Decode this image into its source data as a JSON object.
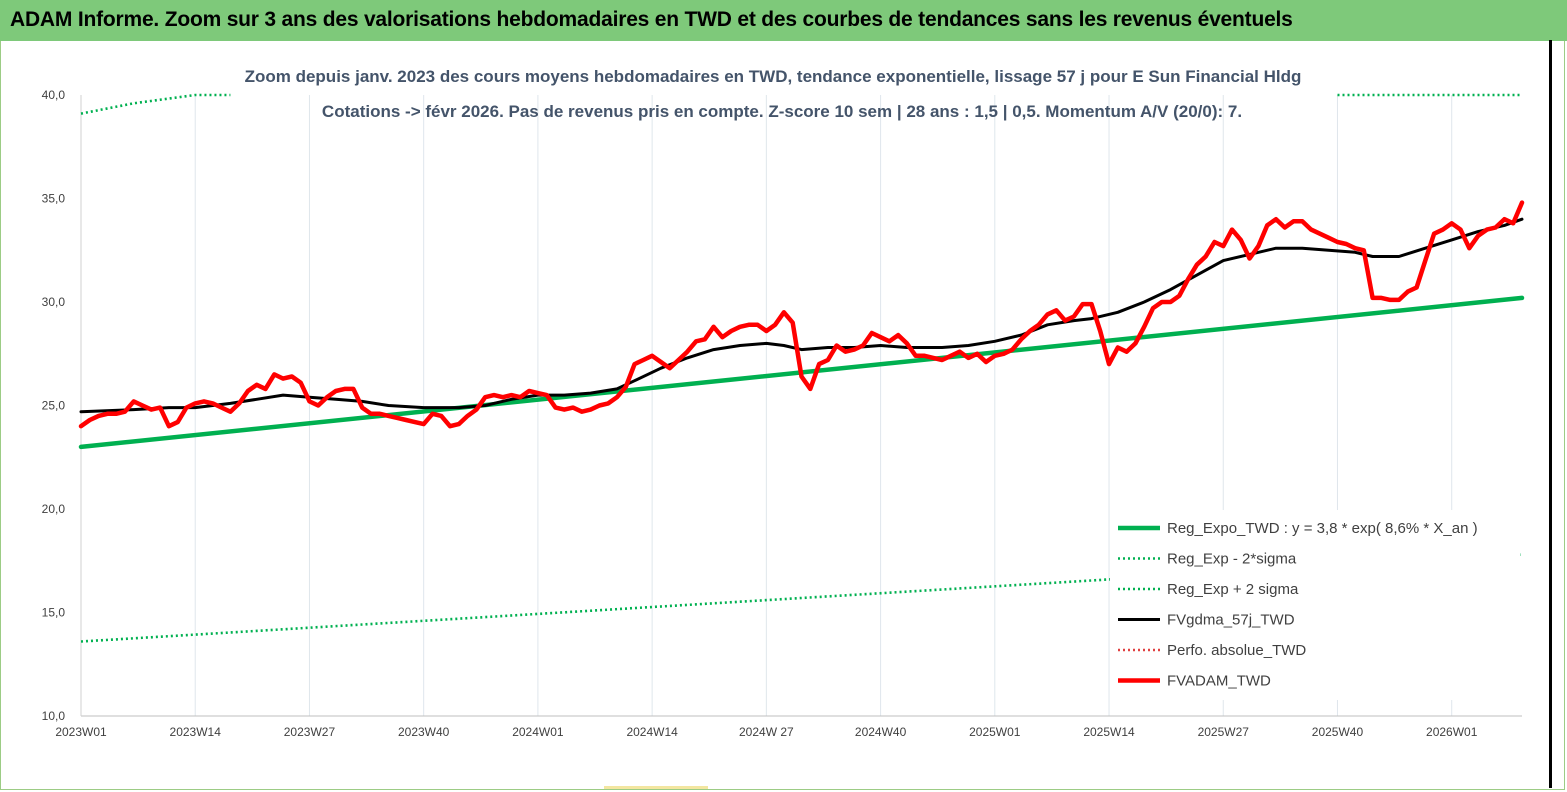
{
  "header": {
    "title": "ADAM Informe. Zoom sur 3 ans des valorisations hebdomadaires en TWD et des courbes de tendances sans les revenus éventuels"
  },
  "chart_data": {
    "type": "line",
    "title": "Zoom depuis janv. 2023 des cours moyens hebdomadaires en TWD, tendance exponentielle, lissage 57 j pour E Sun Financial Hldg",
    "subtitle": "Cotations -> févr 2026. Pas de revenus pris en compte. Z-score 10 sem | 28 ans : 1,5 | 0,5. Momentum A/V (20/0): 7.",
    "xlabel": "",
    "ylabel": "",
    "ylim": [
      10,
      40
    ],
    "yticks": [
      "10,0",
      "15,0",
      "20,0",
      "25,0",
      "30,0",
      "35,0",
      "40,0"
    ],
    "grid": "vertical",
    "x_index_range": [
      0,
      163
    ],
    "x_ticks": [
      {
        "index": 0,
        "label": "2023W01"
      },
      {
        "index": 13,
        "label": "2023W14"
      },
      {
        "index": 26,
        "label": "2023W27"
      },
      {
        "index": 39,
        "label": "2023W40"
      },
      {
        "index": 52,
        "label": "2024W01"
      },
      {
        "index": 65,
        "label": "2024W14"
      },
      {
        "index": 78,
        "label": "2024W 27"
      },
      {
        "index": 91,
        "label": "2024W40"
      },
      {
        "index": 104,
        "label": "2025W01"
      },
      {
        "index": 117,
        "label": "2025W14"
      },
      {
        "index": 130,
        "label": "2025W27"
      },
      {
        "index": 143,
        "label": "2025W40"
      },
      {
        "index": 156,
        "label": "2026W01"
      }
    ],
    "legend_position": "bottom-right",
    "series": [
      {
        "name": "Reg_Expo_TWD : y = 3,8 * exp( 8,6% * X_an )",
        "color": "#00b050",
        "style": "solid-thick",
        "points": [
          [
            0,
            23.0
          ],
          [
            164,
            30.2
          ]
        ]
      },
      {
        "name": "Reg_Exp - 2*sigma",
        "color": "#00b050",
        "style": "dotted",
        "points": [
          [
            0,
            13.6
          ],
          [
            164,
            17.8
          ]
        ]
      },
      {
        "name": "Reg_Exp + 2 sigma",
        "color": "#00b050",
        "style": "dotted",
        "points": [
          [
            0,
            39.1
          ],
          [
            6,
            39.6
          ],
          [
            13,
            40.0
          ],
          [
            17,
            40.0
          ]
        ],
        "points_right": [
          [
            143,
            40.0
          ],
          [
            164,
            40.0
          ]
        ]
      },
      {
        "name": "FVgdma_57j_TWD",
        "color": "#000000",
        "style": "solid",
        "points": [
          [
            0,
            24.7
          ],
          [
            6,
            24.8
          ],
          [
            10,
            24.9
          ],
          [
            13,
            24.9
          ],
          [
            17,
            25.1
          ],
          [
            20,
            25.3
          ],
          [
            23,
            25.5
          ],
          [
            26,
            25.4
          ],
          [
            29,
            25.3
          ],
          [
            32,
            25.2
          ],
          [
            35,
            25.0
          ],
          [
            39,
            24.9
          ],
          [
            43,
            24.9
          ],
          [
            46,
            25.0
          ],
          [
            49,
            25.3
          ],
          [
            52,
            25.5
          ],
          [
            55,
            25.5
          ],
          [
            58,
            25.6
          ],
          [
            61,
            25.8
          ],
          [
            63,
            26.2
          ],
          [
            66,
            26.8
          ],
          [
            69,
            27.3
          ],
          [
            72,
            27.7
          ],
          [
            75,
            27.9
          ],
          [
            78,
            28.0
          ],
          [
            80,
            27.9
          ],
          [
            82,
            27.7
          ],
          [
            85,
            27.8
          ],
          [
            88,
            27.8
          ],
          [
            91,
            27.9
          ],
          [
            94,
            27.8
          ],
          [
            98,
            27.8
          ],
          [
            101,
            27.9
          ],
          [
            104,
            28.1
          ],
          [
            107,
            28.4
          ],
          [
            110,
            28.9
          ],
          [
            113,
            29.1
          ],
          [
            115,
            29.2
          ],
          [
            118,
            29.5
          ],
          [
            121,
            30.0
          ],
          [
            124,
            30.6
          ],
          [
            127,
            31.3
          ],
          [
            130,
            32.0
          ],
          [
            133,
            32.3
          ],
          [
            136,
            32.6
          ],
          [
            139,
            32.6
          ],
          [
            142,
            32.5
          ],
          [
            145,
            32.4
          ],
          [
            147,
            32.2
          ],
          [
            150,
            32.2
          ],
          [
            153,
            32.6
          ],
          [
            156,
            33.0
          ],
          [
            159,
            33.4
          ],
          [
            162,
            33.7
          ],
          [
            164,
            34.0
          ]
        ]
      },
      {
        "name": "Perfo. absolue_TWD",
        "color": "#e04040",
        "style": "dotted",
        "points": []
      },
      {
        "name": "FVADAM_TWD",
        "color": "#ff0000",
        "style": "solid-thick",
        "points": [
          [
            0,
            24.0
          ],
          [
            1,
            24.3
          ],
          [
            2,
            24.5
          ],
          [
            3,
            24.6
          ],
          [
            4,
            24.6
          ],
          [
            5,
            24.7
          ],
          [
            6,
            25.2
          ],
          [
            7,
            25.0
          ],
          [
            8,
            24.8
          ],
          [
            9,
            24.9
          ],
          [
            10,
            24.0
          ],
          [
            11,
            24.2
          ],
          [
            12,
            24.9
          ],
          [
            13,
            25.1
          ],
          [
            14,
            25.2
          ],
          [
            15,
            25.1
          ],
          [
            16,
            24.9
          ],
          [
            17,
            24.7
          ],
          [
            18,
            25.1
          ],
          [
            19,
            25.7
          ],
          [
            20,
            26.0
          ],
          [
            21,
            25.8
          ],
          [
            22,
            26.5
          ],
          [
            23,
            26.3
          ],
          [
            24,
            26.4
          ],
          [
            25,
            26.1
          ],
          [
            26,
            25.2
          ],
          [
            27,
            25.0
          ],
          [
            28,
            25.4
          ],
          [
            29,
            25.7
          ],
          [
            30,
            25.8
          ],
          [
            31,
            25.8
          ],
          [
            32,
            24.9
          ],
          [
            33,
            24.6
          ],
          [
            34,
            24.6
          ],
          [
            35,
            24.5
          ],
          [
            36,
            24.4
          ],
          [
            37,
            24.3
          ],
          [
            38,
            24.2
          ],
          [
            39,
            24.1
          ],
          [
            40,
            24.6
          ],
          [
            41,
            24.5
          ],
          [
            42,
            24.0
          ],
          [
            43,
            24.1
          ],
          [
            44,
            24.5
          ],
          [
            45,
            24.8
          ],
          [
            46,
            25.4
          ],
          [
            47,
            25.5
          ],
          [
            48,
            25.4
          ],
          [
            49,
            25.5
          ],
          [
            50,
            25.4
          ],
          [
            51,
            25.7
          ],
          [
            52,
            25.6
          ],
          [
            53,
            25.5
          ],
          [
            54,
            24.9
          ],
          [
            55,
            24.8
          ],
          [
            56,
            24.9
          ],
          [
            57,
            24.7
          ],
          [
            58,
            24.8
          ],
          [
            59,
            25.0
          ],
          [
            60,
            25.1
          ],
          [
            61,
            25.4
          ],
          [
            62,
            25.9
          ],
          [
            63,
            27.0
          ],
          [
            64,
            27.2
          ],
          [
            65,
            27.4
          ],
          [
            66,
            27.1
          ],
          [
            67,
            26.8
          ],
          [
            68,
            27.2
          ],
          [
            69,
            27.6
          ],
          [
            70,
            28.1
          ],
          [
            71,
            28.2
          ],
          [
            72,
            28.8
          ],
          [
            73,
            28.3
          ],
          [
            74,
            28.6
          ],
          [
            75,
            28.8
          ],
          [
            76,
            28.9
          ],
          [
            77,
            28.9
          ],
          [
            78,
            28.6
          ],
          [
            79,
            28.9
          ],
          [
            80,
            29.5
          ],
          [
            81,
            29.0
          ],
          [
            82,
            26.4
          ],
          [
            83,
            25.8
          ],
          [
            84,
            27.0
          ],
          [
            85,
            27.2
          ],
          [
            86,
            27.9
          ],
          [
            87,
            27.6
          ],
          [
            88,
            27.7
          ],
          [
            89,
            27.9
          ],
          [
            90,
            28.5
          ],
          [
            91,
            28.3
          ],
          [
            92,
            28.1
          ],
          [
            93,
            28.4
          ],
          [
            94,
            28.0
          ],
          [
            95,
            27.4
          ],
          [
            96,
            27.4
          ],
          [
            97,
            27.3
          ],
          [
            98,
            27.2
          ],
          [
            99,
            27.4
          ],
          [
            100,
            27.6
          ],
          [
            101,
            27.3
          ],
          [
            102,
            27.5
          ],
          [
            103,
            27.1
          ],
          [
            104,
            27.4
          ],
          [
            105,
            27.5
          ],
          [
            106,
            27.7
          ],
          [
            107,
            28.2
          ],
          [
            108,
            28.6
          ],
          [
            109,
            28.9
          ],
          [
            110,
            29.4
          ],
          [
            111,
            29.6
          ],
          [
            112,
            29.1
          ],
          [
            113,
            29.3
          ],
          [
            114,
            29.9
          ],
          [
            115,
            29.9
          ],
          [
            116,
            28.6
          ],
          [
            117,
            27.0
          ],
          [
            118,
            27.8
          ],
          [
            119,
            27.6
          ],
          [
            120,
            28.0
          ],
          [
            121,
            28.8
          ],
          [
            122,
            29.7
          ],
          [
            123,
            30.0
          ],
          [
            124,
            30.0
          ],
          [
            125,
            30.3
          ],
          [
            126,
            31.1
          ],
          [
            127,
            31.8
          ],
          [
            128,
            32.2
          ],
          [
            129,
            32.9
          ],
          [
            130,
            32.7
          ],
          [
            131,
            33.5
          ],
          [
            132,
            33.0
          ],
          [
            133,
            32.1
          ],
          [
            134,
            32.7
          ],
          [
            135,
            33.7
          ],
          [
            136,
            34.0
          ],
          [
            137,
            33.6
          ],
          [
            138,
            33.9
          ],
          [
            139,
            33.9
          ],
          [
            140,
            33.5
          ],
          [
            141,
            33.3
          ],
          [
            142,
            33.1
          ],
          [
            143,
            32.9
          ],
          [
            144,
            32.8
          ],
          [
            145,
            32.6
          ],
          [
            146,
            32.5
          ],
          [
            147,
            30.2
          ],
          [
            148,
            30.2
          ],
          [
            149,
            30.1
          ],
          [
            150,
            30.1
          ],
          [
            151,
            30.5
          ],
          [
            152,
            30.7
          ],
          [
            153,
            32.0
          ],
          [
            154,
            33.3
          ],
          [
            155,
            33.5
          ],
          [
            156,
            33.8
          ],
          [
            157,
            33.5
          ],
          [
            158,
            32.6
          ],
          [
            159,
            33.2
          ],
          [
            160,
            33.5
          ],
          [
            161,
            33.6
          ],
          [
            162,
            34.0
          ],
          [
            163,
            33.8
          ],
          [
            164,
            34.8
          ]
        ]
      }
    ]
  }
}
